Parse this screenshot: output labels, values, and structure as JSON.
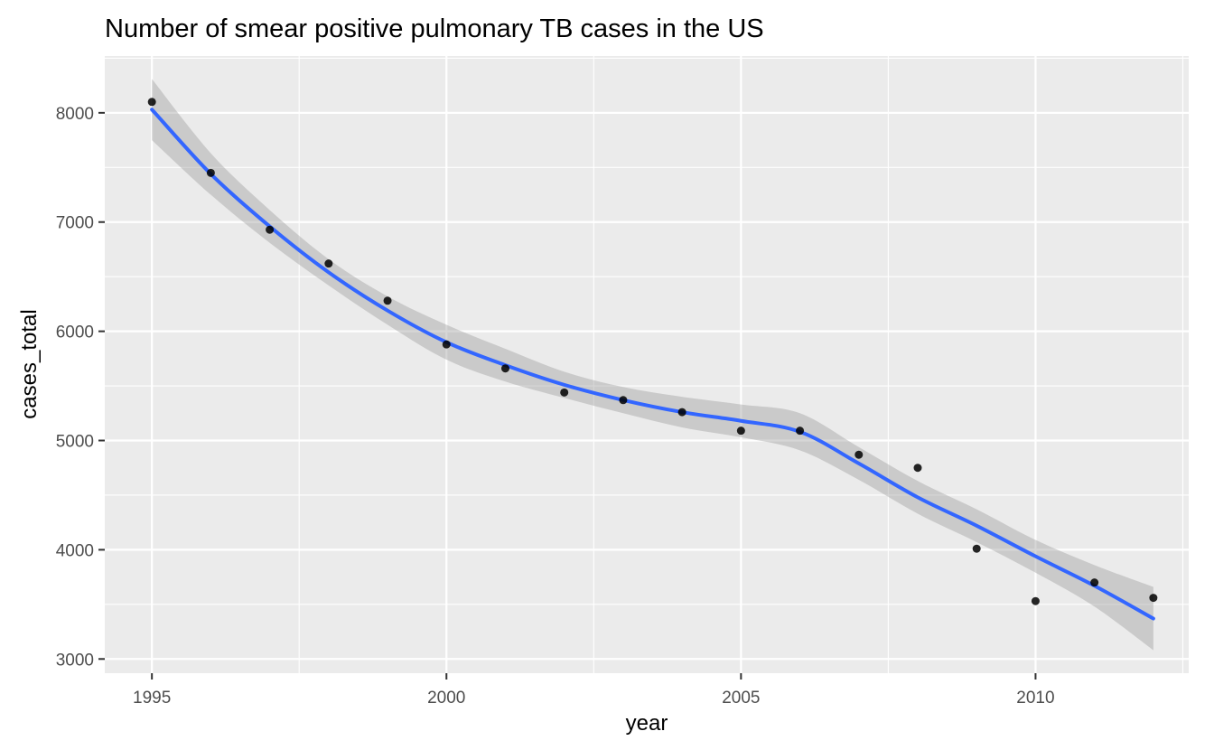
{
  "chart_data": {
    "type": "scatter",
    "title": "Number of smear positive pulmonary TB cases in the US",
    "xlabel": "year",
    "ylabel": "cases_total",
    "xlim": [
      1994.2,
      2012.6
    ],
    "ylim": [
      2870,
      8520
    ],
    "x_ticks": [
      1995,
      2000,
      2005,
      2010
    ],
    "x_tick_labels": [
      "1995",
      "2000",
      "2005",
      "2010"
    ],
    "y_ticks": [
      3000,
      4000,
      5000,
      6000,
      7000,
      8000
    ],
    "y_tick_labels": [
      "3000",
      "4000",
      "5000",
      "6000",
      "7000",
      "8000"
    ],
    "grid": true,
    "legend": "none",
    "colors": {
      "panel": "#ebebeb",
      "grid": "#ffffff",
      "points": "#000000",
      "smooth_line": "#3366ff",
      "ribbon": "#999999"
    },
    "points": {
      "x": [
        1995,
        1996,
        1997,
        1998,
        1999,
        2000,
        2001,
        2002,
        2003,
        2004,
        2005,
        2006,
        2007,
        2008,
        2009,
        2010,
        2011,
        2012
      ],
      "y": [
        8100,
        7450,
        6930,
        6620,
        6280,
        5880,
        5660,
        5440,
        5370,
        5260,
        5090,
        5090,
        4870,
        4750,
        4010,
        3530,
        3700,
        3560
      ]
    },
    "smooth": {
      "x": [
        1995,
        1996,
        1997,
        1998,
        1999,
        2000,
        2001,
        2002,
        2003,
        2004,
        2005,
        2006,
        2007,
        2008,
        2009,
        2010,
        2011,
        2012
      ],
      "y": [
        8030,
        7440,
        6960,
        6540,
        6190,
        5900,
        5690,
        5510,
        5370,
        5260,
        5180,
        5080,
        4790,
        4480,
        4220,
        3940,
        3670,
        3370
      ],
      "ymin": [
        7750,
        7250,
        6810,
        6420,
        6060,
        5740,
        5540,
        5390,
        5250,
        5120,
        5030,
        4910,
        4640,
        4330,
        4070,
        3790,
        3480,
        3080
      ],
      "ymax": [
        8310,
        7630,
        7110,
        6660,
        6320,
        6060,
        5840,
        5630,
        5490,
        5400,
        5330,
        5250,
        4940,
        4630,
        4370,
        4090,
        3860,
        3660
      ]
    }
  }
}
